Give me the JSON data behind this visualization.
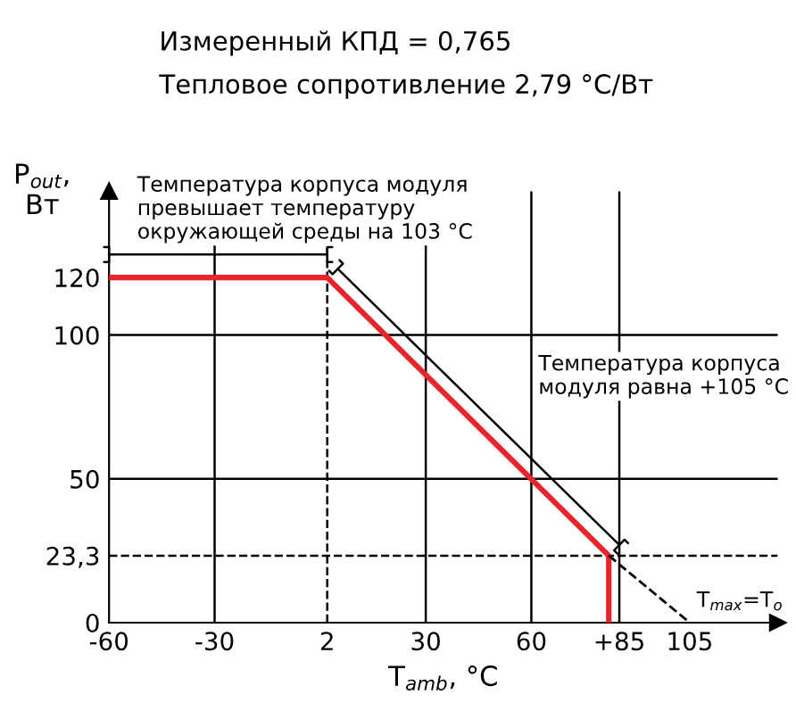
{
  "chart_data": {
    "type": "line",
    "title": "Измеренный КПД = 0,765",
    "subtitle": "Тепловое сопротивление 2,79 °C/Вт",
    "xlabel": "T$_{amb}$, °C",
    "ylabel": "P$_{out}$,\nВт",
    "xlim": [
      -60,
      130
    ],
    "ylim": [
      0,
      150
    ],
    "xticks": [
      -60,
      -30,
      2,
      30,
      60,
      {
        "value": 85,
        "label": "+85"
      },
      105
    ],
    "yticks": [
      0,
      {
        "value": 23.3,
        "label": "23,3"
      },
      50,
      100,
      120
    ],
    "series": [
      {
        "color": "#e8242c",
        "line_style": "solid",
        "x": [
          -60,
          2,
          82,
          82
        ],
        "values": [
          120,
          120,
          23.3,
          0
        ]
      },
      {
        "color": "#000000",
        "line_style": "dashed",
        "x": [
          82,
          105
        ],
        "values": [
          23.3,
          0
        ]
      }
    ],
    "ref_lines": [
      {
        "axis": "x",
        "value": 2,
        "color": "#000000",
        "line_style": "dashed"
      },
      {
        "axis": "y",
        "value": 23.3,
        "color": "#000000",
        "line_style": "dashed"
      },
      {
        "axis": "x",
        "value": -30,
        "color": "#000000",
        "line_style": "solid"
      },
      {
        "axis": "x",
        "value": 30,
        "color": "#000000",
        "line_style": "solid"
      },
      {
        "axis": "x",
        "value": 60,
        "color": "#000000",
        "line_style": "solid"
      },
      {
        "axis": "x",
        "value": 85,
        "color": "#000000",
        "line_style": "solid"
      },
      {
        "axis": "y",
        "value": 50,
        "color": "#000000",
        "line_style": "solid"
      },
      {
        "axis": "y",
        "value": 100,
        "color": "#000000",
        "line_style": "solid"
      }
    ],
    "annotations": [
      "Температура корпуса модуля\nпревышает температуру\nокружающей среды на 103 °C",
      "Температура корпуса\nмодуля равна +105 °C",
      {
        "text": "T$_{max}$=T$_{o}$",
        "x": 105,
        "y": 0
      }
    ],
    "marker": "none",
    "grid": false,
    "legend": false
  }
}
